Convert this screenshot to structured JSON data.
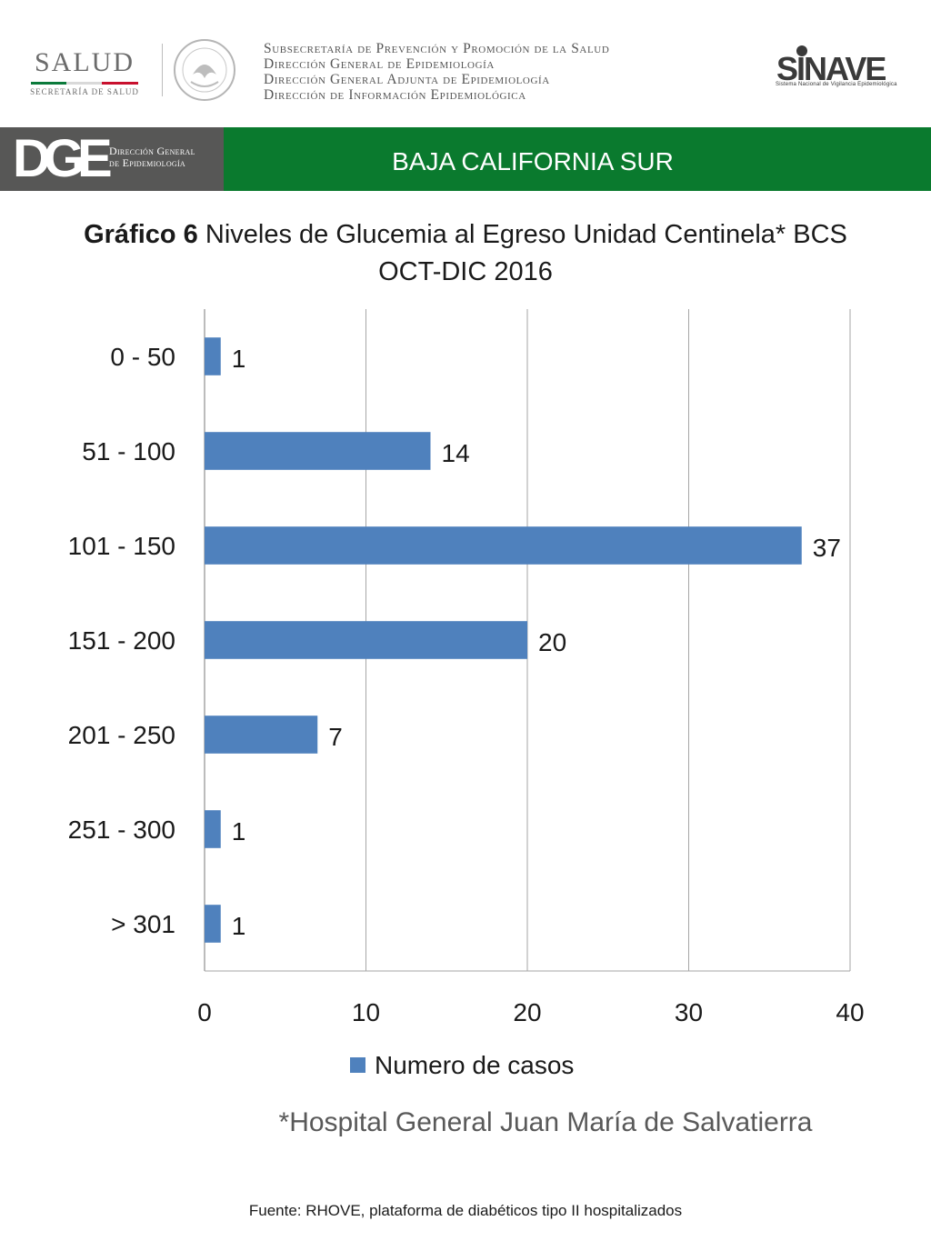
{
  "header": {
    "salud_word": "SALUD",
    "salud_sub": "SECRETARÍA DE SALUD",
    "dept_lines": [
      "Subsecretaría de Prevención y Promoción de la Salud",
      "Dirección General de Epidemiología",
      "Dirección General Adjunta de Epidemiología",
      "Dirección de Información Epidemiológica"
    ],
    "sinave_logo": "SINAVE",
    "sinave_sub": "Sistema Nacional de Vigilancia Epidemiológica"
  },
  "banner": {
    "dge_logo": "DGE",
    "dge_label_1": "Dirección General",
    "dge_label_2": "de Epidemiología",
    "state": "BAJA CALIFORNIA SUR",
    "grey_color": "#575756",
    "green_color": "#0a7a2e"
  },
  "title": {
    "bold": "Gráfico 6",
    "rest": " Niveles de Glucemia al Egreso  Unidad Centinela* BCS",
    "line2": "OCT-DIC 2016"
  },
  "chart_data": {
    "type": "bar",
    "orientation": "horizontal",
    "categories": [
      "0 - 50",
      "51 - 100",
      "101 - 150",
      "151 - 200",
      "201 - 250",
      "251 - 300",
      "> 301"
    ],
    "series": [
      {
        "name": "Numero de casos",
        "values": [
          1,
          14,
          37,
          20,
          7,
          1,
          1
        ],
        "color": "#4f81bd"
      }
    ],
    "xlim": [
      0,
      40
    ],
    "xticks": [
      "0",
      "10",
      "20",
      "30",
      "40"
    ],
    "grid": true,
    "legend": "bottom",
    "data_labels": true
  },
  "footnotes": {
    "hospital": "*Hospital General Juan María de Salvatierra",
    "source": "Fuente: RHOVE, plataforma de diabéticos tipo II hospitalizados"
  }
}
